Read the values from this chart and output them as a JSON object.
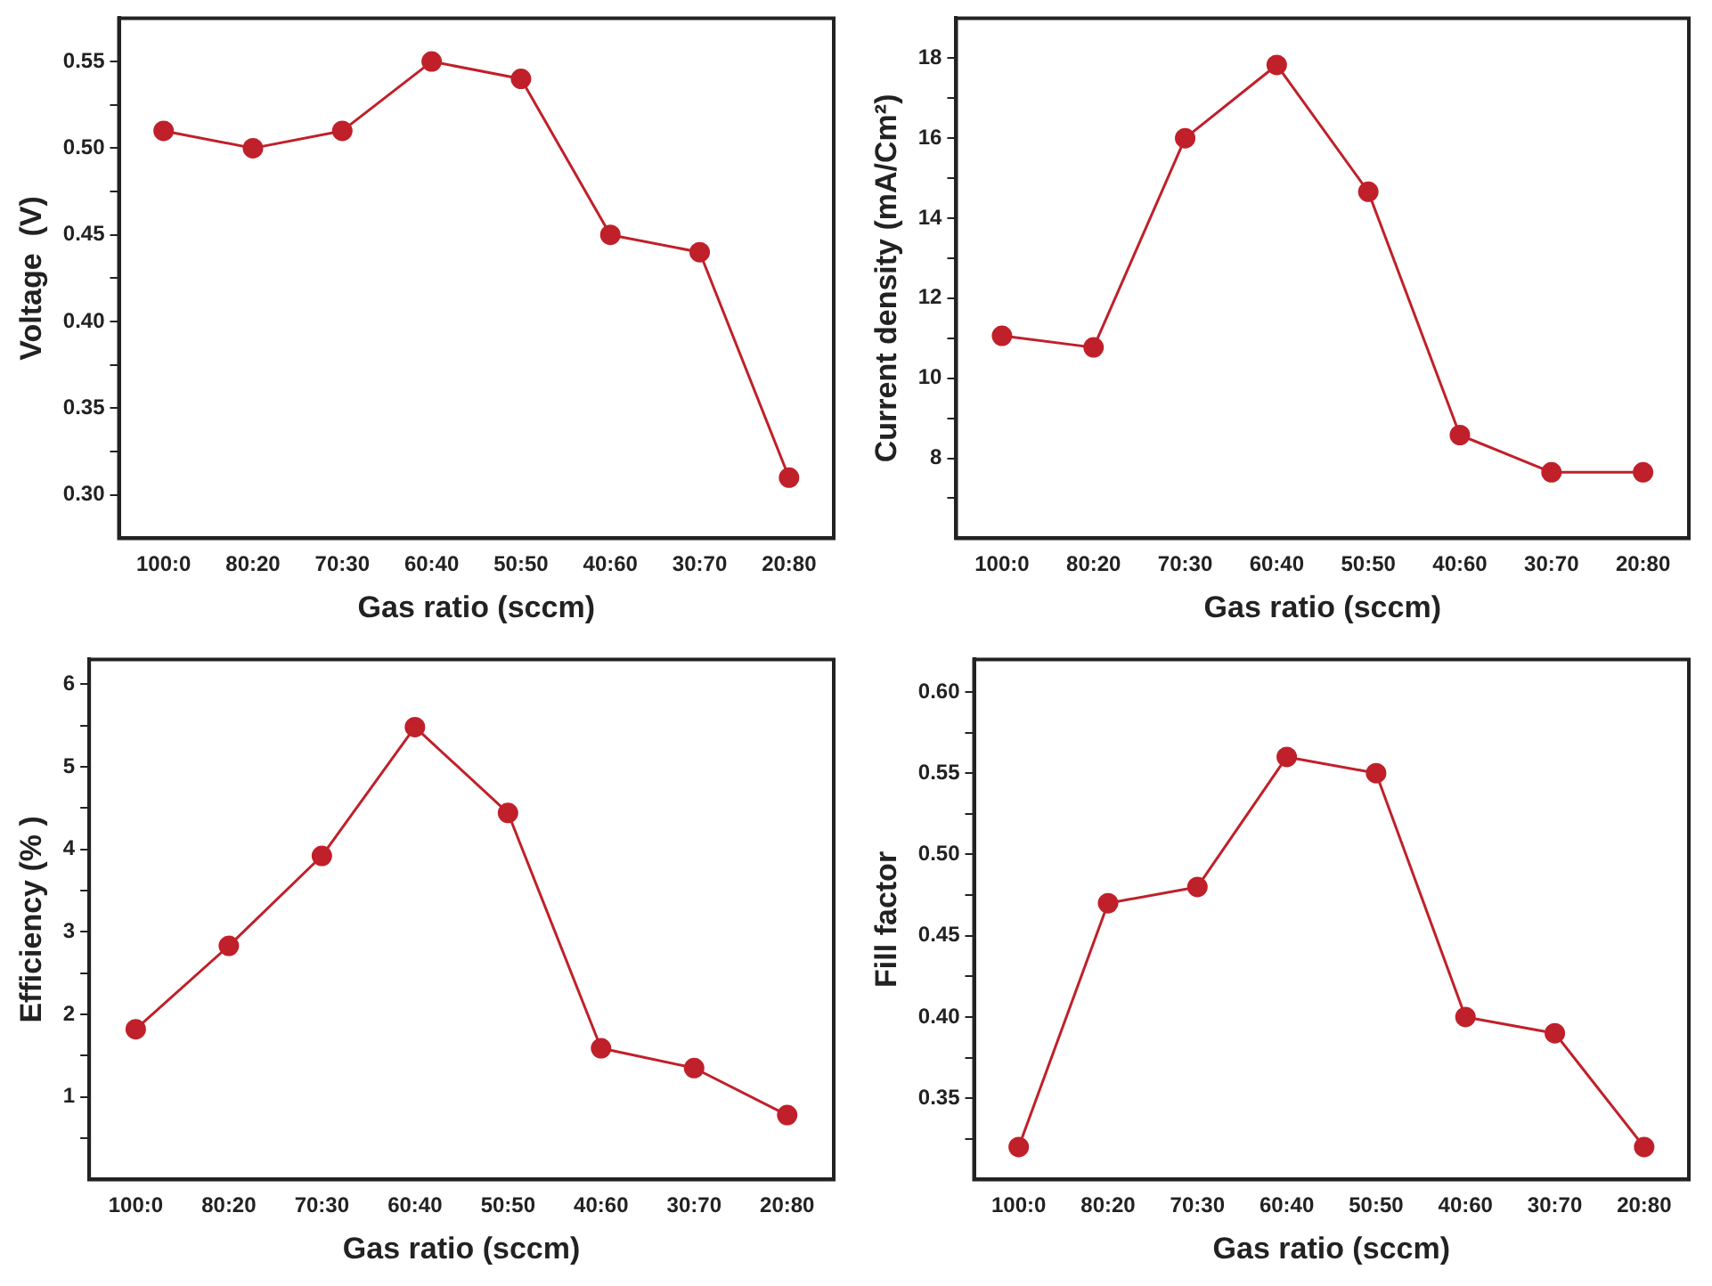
{
  "chart_data": [
    {
      "type": "line",
      "xlabel": "Gas ratio (sccm)",
      "ylabel": "Voltage  (V)",
      "categories": [
        "100:0",
        "80:20",
        "70:30",
        "60:40",
        "50:50",
        "40:60",
        "30:70",
        "20:80"
      ],
      "series": [
        {
          "color": "#c0202a",
          "values": [
            0.51,
            0.5,
            0.51,
            0.55,
            0.54,
            0.45,
            0.44,
            0.31
          ]
        }
      ],
      "ylim": [
        0.275,
        0.575
      ],
      "yticks": [
        {
          "value": 0.3,
          "label": "0.30"
        },
        {
          "value": 0.325,
          "label": null
        },
        {
          "value": 0.35,
          "label": "0.35"
        },
        {
          "value": 0.375,
          "label": null
        },
        {
          "value": 0.4,
          "label": "0.40"
        },
        {
          "value": 0.425,
          "label": null
        },
        {
          "value": 0.45,
          "label": "0.45"
        },
        {
          "value": 0.475,
          "label": null
        },
        {
          "value": 0.5,
          "label": "0.50"
        },
        {
          "value": 0.525,
          "label": null
        },
        {
          "value": 0.55,
          "label": "0.55"
        }
      ],
      "grid": false,
      "legend": false,
      "marker": "circle",
      "line_style": "solid"
    },
    {
      "type": "line",
      "xlabel": "Gas ratio (sccm)",
      "ylabel": "Current density (mA/Cm²)",
      "categories": [
        "100:0",
        "80:20",
        "70:30",
        "60:40",
        "50:50",
        "40:60",
        "30:70",
        "20:80"
      ],
      "series": [
        {
          "color": "#c0202a",
          "values": [
            11.06,
            10.77,
            16.0,
            17.83,
            14.66,
            8.58,
            7.65,
            7.65
          ]
        }
      ],
      "ylim": [
        6,
        19
      ],
      "yticks": [
        {
          "value": 7,
          "label": null
        },
        8,
        {
          "value": 9,
          "label": null
        },
        10,
        {
          "value": 11,
          "label": null
        },
        12,
        {
          "value": 13,
          "label": null
        },
        14,
        {
          "value": 15,
          "label": null
        },
        16,
        {
          "value": 17,
          "label": null
        },
        18
      ],
      "grid": false,
      "legend": false,
      "marker": "circle",
      "line_style": "solid"
    },
    {
      "type": "line",
      "xlabel": "Gas ratio (sccm)",
      "ylabel": "Efficiency (% )",
      "categories": [
        "100:0",
        "80:20",
        "70:30",
        "60:40",
        "50:50",
        "40:60",
        "30:70",
        "20:80"
      ],
      "series": [
        {
          "color": "#c0202a",
          "values": [
            1.82,
            2.83,
            3.92,
            5.48,
            4.44,
            1.59,
            1.35,
            0.78
          ]
        }
      ],
      "ylim": [
        0,
        6.3
      ],
      "yticks": [
        {
          "value": 0.5,
          "label": null
        },
        1,
        {
          "value": 1.5,
          "label": null
        },
        2,
        {
          "value": 2.5,
          "label": null
        },
        3,
        {
          "value": 3.5,
          "label": null
        },
        4,
        {
          "value": 4.5,
          "label": null
        },
        5,
        {
          "value": 5.5,
          "label": null
        },
        6
      ],
      "grid": false,
      "legend": false,
      "marker": "circle",
      "line_style": "solid"
    },
    {
      "type": "line",
      "xlabel": "Gas ratio (sccm)",
      "ylabel": "Fill factor",
      "categories": [
        "100:0",
        "80:20",
        "70:30",
        "60:40",
        "50:50",
        "40:60",
        "30:70",
        "20:80"
      ],
      "series": [
        {
          "color": "#c0202a",
          "values": [
            0.32,
            0.47,
            0.48,
            0.56,
            0.55,
            0.4,
            0.39,
            0.32
          ]
        }
      ],
      "ylim": [
        0.3,
        0.62
      ],
      "yticks": [
        {
          "value": 0.325,
          "label": null
        },
        {
          "value": 0.35,
          "label": "0.35"
        },
        {
          "value": 0.375,
          "label": null
        },
        {
          "value": 0.4,
          "label": "0.40"
        },
        {
          "value": 0.425,
          "label": null
        },
        {
          "value": 0.45,
          "label": "0.45"
        },
        {
          "value": 0.475,
          "label": null
        },
        {
          "value": 0.5,
          "label": "0.50"
        },
        {
          "value": 0.525,
          "label": null
        },
        {
          "value": 0.55,
          "label": "0.55"
        },
        {
          "value": 0.575,
          "label": null
        },
        {
          "value": 0.6,
          "label": "0.60"
        }
      ],
      "grid": false,
      "legend": false,
      "marker": "circle",
      "line_style": "solid"
    }
  ]
}
